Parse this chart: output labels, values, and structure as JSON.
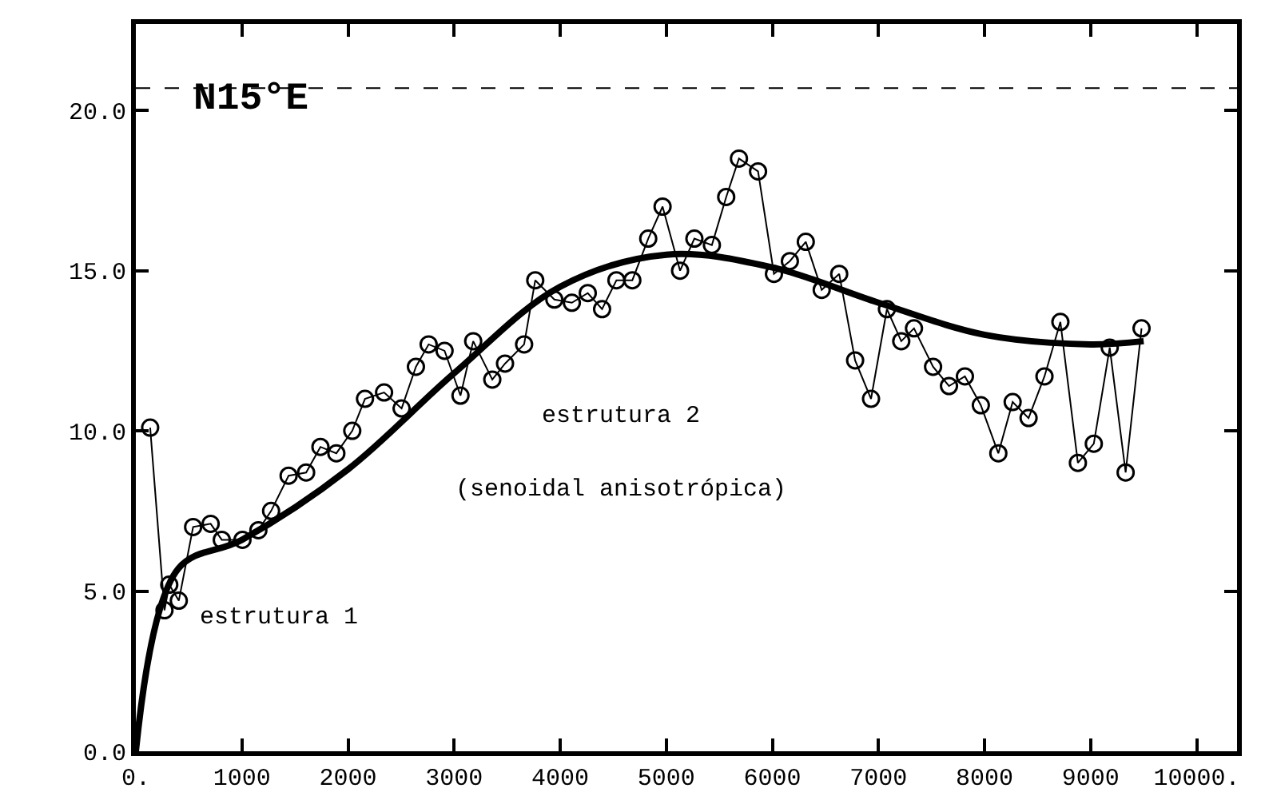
{
  "chart_data": {
    "type": "line",
    "title": "N15°E",
    "xlim": [
      0,
      10380
    ],
    "ylim": [
      0,
      22.7
    ],
    "xticks": [
      {
        "value": 0,
        "label": "0."
      },
      1000,
      2000,
      3000,
      4000,
      5000,
      6000,
      7000,
      8000,
      9000,
      {
        "value": 10000,
        "label": "10000."
      }
    ],
    "yticks": [
      {
        "value": 0,
        "label": "0.0"
      },
      {
        "value": 5,
        "label": "5.0"
      },
      {
        "value": 10,
        "label": "10.0"
      },
      {
        "value": 15,
        "label": "15.0"
      },
      {
        "value": 20,
        "label": "20.0"
      }
    ],
    "series": [
      {
        "marker": "circle",
        "color": "#000000",
        "x": [
          135,
          270,
          315,
          405,
          540,
          705,
          810,
          1005,
          1155,
          1275,
          1440,
          1605,
          1740,
          1890,
          2040,
          2160,
          2340,
          2505,
          2640,
          2760,
          2910,
          3060,
          3180,
          3360,
          3480,
          3660,
          3765,
          3945,
          4110,
          4260,
          4395,
          4530,
          4680,
          4830,
          4965,
          5130,
          5265,
          5430,
          5565,
          5685,
          5865,
          6015,
          6165,
          6315,
          6465,
          6630,
          6780,
          6930,
          7080,
          7215,
          7335,
          7515,
          7665,
          7815,
          7965,
          8130,
          8265,
          8415,
          8565,
          8715,
          8880,
          9030,
          9180,
          9330,
          9480
        ],
        "values": [
          10.1,
          4.4,
          5.2,
          4.7,
          7.0,
          7.1,
          6.6,
          6.6,
          6.9,
          7.5,
          8.6,
          8.7,
          9.5,
          9.3,
          10.0,
          11.0,
          11.2,
          10.7,
          12.0,
          12.7,
          12.5,
          11.1,
          12.8,
          11.6,
          12.1,
          12.7,
          14.7,
          14.1,
          14.0,
          14.3,
          13.8,
          14.7,
          14.7,
          16.0,
          17.0,
          15.0,
          16.0,
          15.8,
          17.3,
          18.5,
          18.1,
          14.9,
          15.3,
          15.9,
          14.4,
          14.9,
          12.2,
          11.0,
          13.8,
          12.8,
          13.2,
          12.0,
          11.4,
          11.7,
          10.8,
          9.3,
          10.9,
          10.4,
          11.7,
          13.4,
          9.0,
          9.6,
          12.6,
          8.7,
          13.2
        ]
      },
      {
        "marker": "none",
        "color": "#000000",
        "x": [
          0,
          400,
          1000,
          2000,
          3000,
          4000,
          5000,
          6000,
          7000,
          8000,
          9000,
          9500
        ],
        "values": [
          0,
          5.7,
          6.6,
          8.8,
          11.8,
          14.5,
          15.5,
          15.1,
          14.0,
          13.0,
          12.7,
          12.8
        ]
      }
    ],
    "ref_lines": [
      {
        "axis": "y",
        "value": 20.7,
        "line_style": "dashed",
        "color": "#000000"
      }
    ],
    "annotations": [
      "estrutura 2",
      "(senoidal anisotrópica)",
      "estrutura 1"
    ]
  }
}
